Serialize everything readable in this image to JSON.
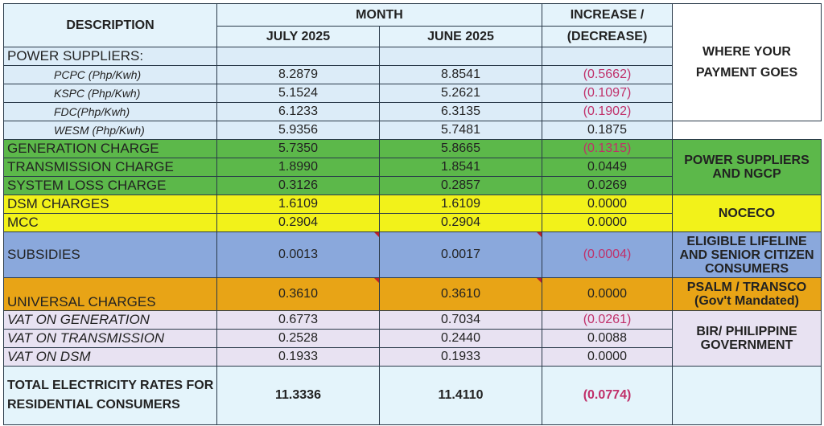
{
  "header": {
    "description": "DESCRIPTION",
    "month": "MONTH",
    "col_july": "JULY 2025",
    "col_june": "JUNE 2025",
    "increase": "INCREASE /",
    "decrease": "(DECREASE)",
    "where": "WHERE YOUR PAYMENT GOES"
  },
  "power_suppliers_label": "POWER SUPPLIERS:",
  "suppliers": [
    {
      "label": "PCPC (Php/Kwh)",
      "july": "8.2879",
      "june": "8.8541",
      "change": "(0.5662)"
    },
    {
      "label": "KSPC (Php/Kwh)",
      "july": "5.1524",
      "june": "5.2621",
      "change": "(0.1097)"
    },
    {
      "label": "FDC(Php/Kwh)",
      "july": "6.1233",
      "june": "6.3135",
      "change": "(0.1902)"
    },
    {
      "label": "WESM (Php/Kwh)",
      "july": "5.9356",
      "june": "5.7481",
      "change": "0.1875"
    }
  ],
  "charges": {
    "generation": {
      "label": "GENERATION CHARGE",
      "july": "5.7350",
      "june": "5.8665",
      "change": "(0.1315)"
    },
    "transmission": {
      "label": "TRANSMISSION CHARGE",
      "july": "1.8990",
      "june": "1.8541",
      "change": "0.0449"
    },
    "system_loss": {
      "label": "SYSTEM LOSS CHARGE",
      "july": "0.3126",
      "june": "0.2857",
      "change": "0.0269"
    },
    "dsm": {
      "label": "DSM CHARGES",
      "july": "1.6109",
      "june": "1.6109",
      "change": "0.0000"
    },
    "mcc": {
      "label": "MCC",
      "july": "0.2904",
      "june": "0.2904",
      "change": "0.0000"
    },
    "subsidies": {
      "label": "SUBSIDIES",
      "july": "0.0013",
      "june": "0.0017",
      "change": "(0.0004)"
    },
    "universal": {
      "label": "UNIVERSAL CHARGES",
      "july": "0.3610",
      "june": "0.3610",
      "change": "0.0000"
    },
    "vat_generation": {
      "label": "VAT ON GENERATION",
      "july": "0.6773",
      "june": "0.7034",
      "change": "(0.0261)"
    },
    "vat_transmission": {
      "label": "VAT ON TRANSMISSION",
      "july": "0.2528",
      "june": "0.2440",
      "change": "0.0088"
    },
    "vat_dsm": {
      "label": "VAT ON DSM",
      "july": "0.1933",
      "june": "0.1933",
      "change": "0.0000"
    }
  },
  "total": {
    "label": "TOTAL ELECTRICITY RATES FOR RESIDENTIAL CONSUMERS",
    "july": "11.3336",
    "june": "11.4110",
    "change": "(0.0774)"
  },
  "destinations": {
    "power_suppliers": "POWER SUPPLIERS AND NGCP",
    "noceco": "NOCECO",
    "lifeline": "ELIGIBLE LIFELINE AND SENIOR CITIZEN CONSUMERS",
    "psalm": "PSALM / TRANSCO (Gov't Mandated)",
    "bir": "BIR/ PHILIPPINE GOVERNMENT"
  },
  "colors": {
    "light_blue": "#dcecf8",
    "green": "#5cb84a",
    "yellow": "#f2f21a",
    "blue": "#8aa8dc",
    "orange": "#e8a416",
    "lavender": "#e8e2f2",
    "negative_text": "#c0306a"
  }
}
